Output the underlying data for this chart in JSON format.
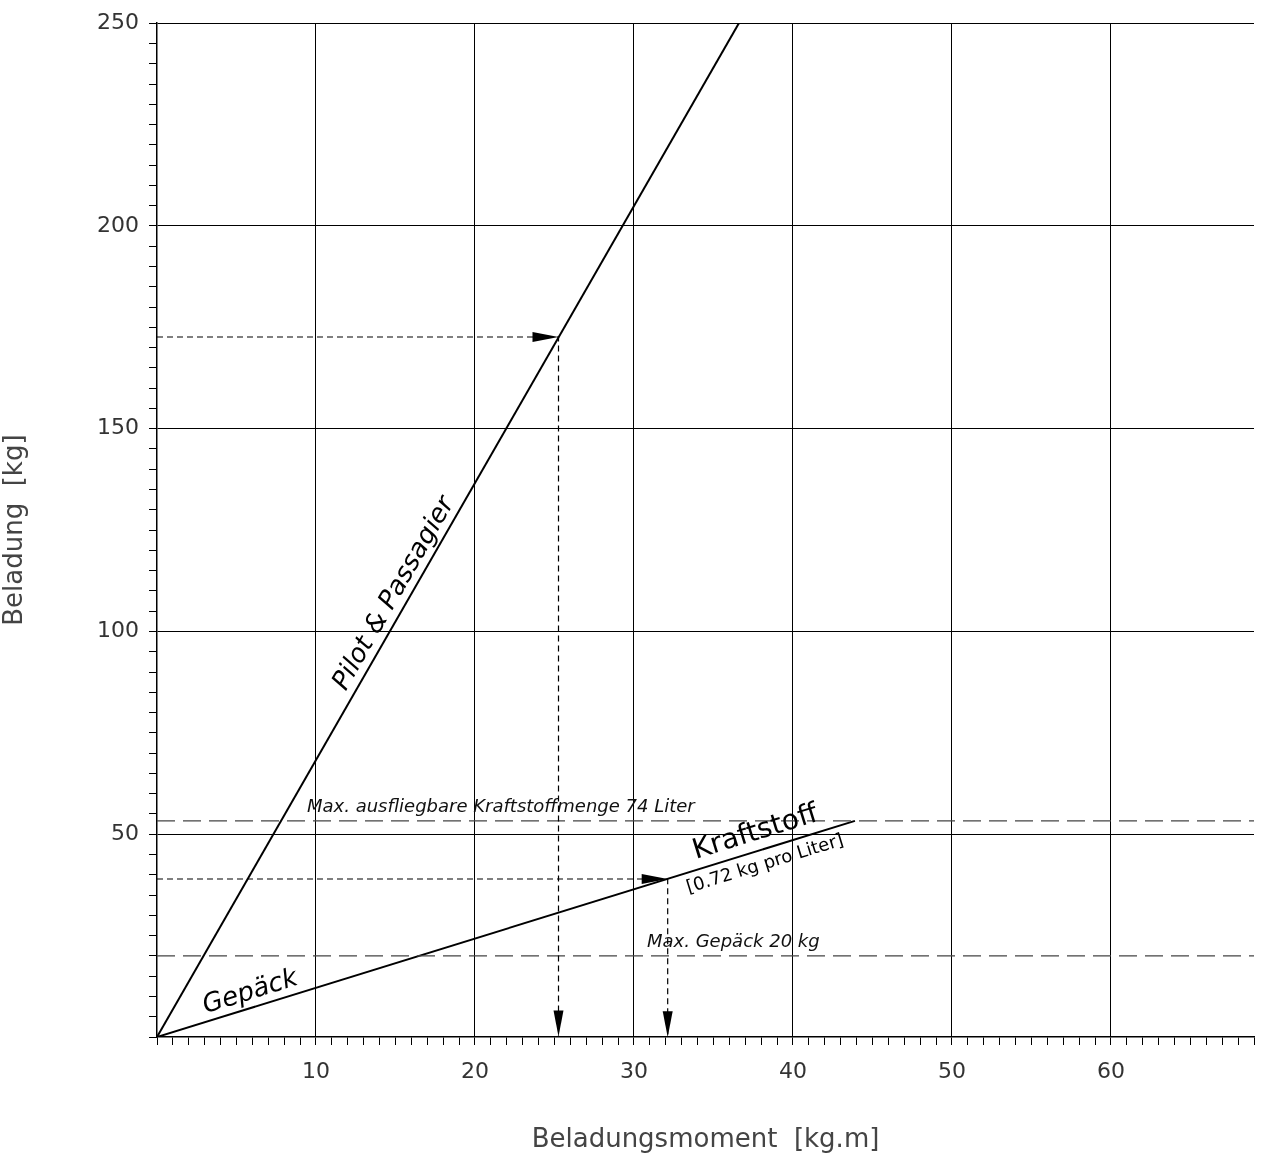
{
  "chart_data": {
    "type": "line",
    "xlabel": "Beladungsmoment  [kg.m]",
    "ylabel": "Beladung  [kg]",
    "xlim": [
      0,
      69
    ],
    "ylim": [
      0,
      250
    ],
    "xticks": [
      {
        "value": 0,
        "label": null
      },
      {
        "value": 1,
        "label": null
      },
      {
        "value": 2,
        "label": null
      },
      {
        "value": 3,
        "label": null
      },
      {
        "value": 4,
        "label": null
      },
      {
        "value": 5,
        "label": null
      },
      {
        "value": 6,
        "label": null
      },
      {
        "value": 7,
        "label": null
      },
      {
        "value": 8,
        "label": null
      },
      {
        "value": 9,
        "label": null
      },
      10,
      {
        "value": 11,
        "label": null
      },
      {
        "value": 12,
        "label": null
      },
      {
        "value": 13,
        "label": null
      },
      {
        "value": 14,
        "label": null
      },
      {
        "value": 15,
        "label": null
      },
      {
        "value": 16,
        "label": null
      },
      {
        "value": 17,
        "label": null
      },
      {
        "value": 18,
        "label": null
      },
      {
        "value": 19,
        "label": null
      },
      20,
      {
        "value": 21,
        "label": null
      },
      {
        "value": 22,
        "label": null
      },
      {
        "value": 23,
        "label": null
      },
      {
        "value": 24,
        "label": null
      },
      {
        "value": 25,
        "label": null
      },
      {
        "value": 26,
        "label": null
      },
      {
        "value": 27,
        "label": null
      },
      {
        "value": 28,
        "label": null
      },
      {
        "value": 29,
        "label": null
      },
      30,
      {
        "value": 31,
        "label": null
      },
      {
        "value": 32,
        "label": null
      },
      {
        "value": 33,
        "label": null
      },
      {
        "value": 34,
        "label": null
      },
      {
        "value": 35,
        "label": null
      },
      {
        "value": 36,
        "label": null
      },
      {
        "value": 37,
        "label": null
      },
      {
        "value": 38,
        "label": null
      },
      {
        "value": 39,
        "label": null
      },
      40,
      {
        "value": 41,
        "label": null
      },
      {
        "value": 42,
        "label": null
      },
      {
        "value": 43,
        "label": null
      },
      {
        "value": 44,
        "label": null
      },
      {
        "value": 45,
        "label": null
      },
      {
        "value": 46,
        "label": null
      },
      {
        "value": 47,
        "label": null
      },
      {
        "value": 48,
        "label": null
      },
      {
        "value": 49,
        "label": null
      },
      50,
      {
        "value": 51,
        "label": null
      },
      {
        "value": 52,
        "label": null
      },
      {
        "value": 53,
        "label": null
      },
      {
        "value": 54,
        "label": null
      },
      {
        "value": 55,
        "label": null
      },
      {
        "value": 56,
        "label": null
      },
      {
        "value": 57,
        "label": null
      },
      {
        "value": 58,
        "label": null
      },
      {
        "value": 59,
        "label": null
      },
      60,
      {
        "value": 61,
        "label": null
      },
      {
        "value": 62,
        "label": null
      },
      {
        "value": 63,
        "label": null
      },
      {
        "value": 64,
        "label": null
      },
      {
        "value": 65,
        "label": null
      },
      {
        "value": 66,
        "label": null
      },
      {
        "value": 67,
        "label": null
      },
      {
        "value": 68,
        "label": null
      },
      {
        "value": 69,
        "label": null
      }
    ],
    "yticks": [
      {
        "value": 0,
        "label": null
      },
      {
        "value": 5,
        "label": null
      },
      {
        "value": 10,
        "label": null
      },
      {
        "value": 15,
        "label": null
      },
      {
        "value": 20,
        "label": null
      },
      {
        "value": 25,
        "label": null
      },
      {
        "value": 30,
        "label": null
      },
      {
        "value": 35,
        "label": null
      },
      {
        "value": 40,
        "label": null
      },
      {
        "value": 45,
        "label": null
      },
      50,
      {
        "value": 55,
        "label": null
      },
      {
        "value": 60,
        "label": null
      },
      {
        "value": 65,
        "label": null
      },
      {
        "value": 70,
        "label": null
      },
      {
        "value": 75,
        "label": null
      },
      {
        "value": 80,
        "label": null
      },
      {
        "value": 85,
        "label": null
      },
      {
        "value": 90,
        "label": null
      },
      {
        "value": 95,
        "label": null
      },
      100,
      {
        "value": 105,
        "label": null
      },
      {
        "value": 110,
        "label": null
      },
      {
        "value": 115,
        "label": null
      },
      {
        "value": 120,
        "label": null
      },
      {
        "value": 125,
        "label": null
      },
      {
        "value": 130,
        "label": null
      },
      {
        "value": 135,
        "label": null
      },
      {
        "value": 140,
        "label": null
      },
      {
        "value": 145,
        "label": null
      },
      150,
      {
        "value": 155,
        "label": null
      },
      {
        "value": 160,
        "label": null
      },
      {
        "value": 165,
        "label": null
      },
      {
        "value": 170,
        "label": null
      },
      {
        "value": 175,
        "label": null
      },
      {
        "value": 180,
        "label": null
      },
      {
        "value": 185,
        "label": null
      },
      {
        "value": 190,
        "label": null
      },
      {
        "value": 195,
        "label": null
      },
      200,
      {
        "value": 205,
        "label": null
      },
      {
        "value": 210,
        "label": null
      },
      {
        "value": 215,
        "label": null
      },
      {
        "value": 220,
        "label": null
      },
      {
        "value": 225,
        "label": null
      },
      {
        "value": 230,
        "label": null
      },
      {
        "value": 235,
        "label": null
      },
      {
        "value": 240,
        "label": null
      },
      {
        "value": 245,
        "label": null
      },
      250
    ],
    "grid": true,
    "marker": "none",
    "series": [
      {
        "name": "Pilot & Passagier",
        "color": "#000000",
        "line_style": "solid",
        "x": [
          0,
          36.6
        ],
        "values": [
          0,
          250
        ]
      },
      {
        "name": "Gepäck",
        "color": "#000000",
        "line_style": "solid",
        "x": [
          0,
          43.9
        ],
        "values": [
          0,
          53.3
        ]
      }
    ],
    "ref_lines": [
      {
        "axis": "y",
        "value": 53.3,
        "label": "Max. ausfliegbare Kraftstoffmenge 74 Liter",
        "color": "#444444",
        "line_style": "dashed"
      },
      {
        "axis": "y",
        "value": 20,
        "label": "Max. Gepäck 20 kg",
        "color": "#444444",
        "line_style": "dashed"
      }
    ],
    "annotations": [
      "Kraftstoff",
      "[0.72 kg pro Liter]"
    ]
  }
}
